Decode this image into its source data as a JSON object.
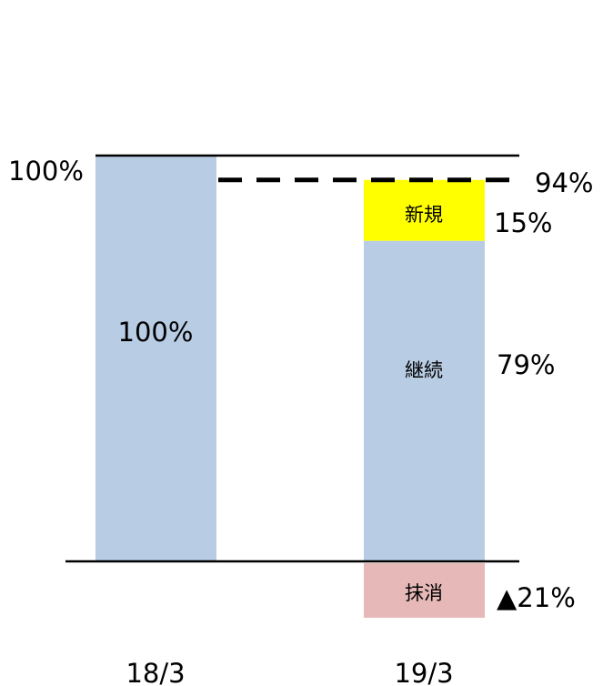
{
  "chart_data": {
    "type": "bar",
    "stacked": true,
    "categories": [
      "18/3",
      "19/3"
    ],
    "series": [
      {
        "name": "継続",
        "values": [
          100,
          79
        ]
      },
      {
        "name": "新規",
        "values": [
          0,
          15
        ]
      },
      {
        "name": "抹消",
        "values": [
          0,
          -21
        ]
      }
    ],
    "data_labels": {
      "bar_18_3": "100%",
      "continuing": "79%",
      "new": "15%",
      "removed": "▲21%"
    },
    "reference_lines": [
      {
        "value": 100,
        "label": "100%",
        "style": "solid"
      },
      {
        "value": 94,
        "label": "94%",
        "style": "dashed"
      }
    ],
    "colors": {
      "continuing": "#b8cce4",
      "new": "#ffff00",
      "removed": "#e6b9b8",
      "lines": "#000000"
    },
    "ylim": [
      -21,
      100
    ],
    "grid": false,
    "legend": "none"
  }
}
